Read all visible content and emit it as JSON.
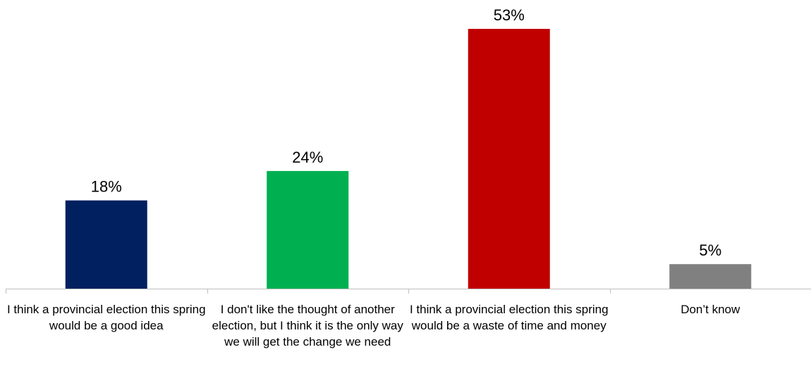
{
  "chart_data": {
    "type": "bar",
    "categories": [
      "I think a provincial election this spring would be a good idea",
      "I don't like the thought of another election, but I think it is the only way we will get the change we need",
      "I think a provincial election this spring would be a waste of time and money",
      "Don’t know"
    ],
    "values": [
      18,
      24,
      53,
      5
    ],
    "value_labels": [
      "18%",
      "24%",
      "53%",
      "5%"
    ],
    "colors": [
      "#002060",
      "#00B050",
      "#C00000",
      "#808080"
    ],
    "ylim": [
      0,
      53
    ],
    "grid": false,
    "legend": "none"
  }
}
